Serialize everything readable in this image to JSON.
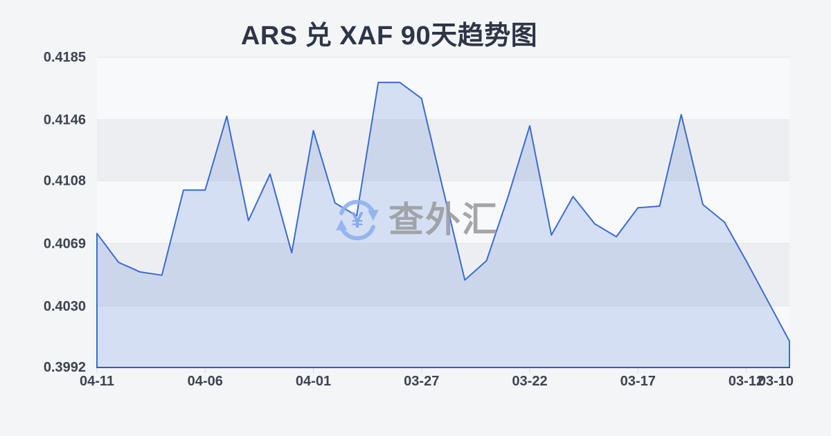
{
  "chart": {
    "title": "ARS 兑 XAF 90天趋势图",
    "watermark": {
      "text": "查外汇",
      "icon": "currency-exchange-icon",
      "currency_symbol": "¥"
    }
  },
  "chart_data": {
    "type": "area",
    "title": "ARS 兑 XAF 90天趋势图",
    "x": [
      "04-11",
      "04-10",
      "04-09",
      "04-08",
      "04-07",
      "04-06",
      "04-05",
      "04-04",
      "04-03",
      "04-02",
      "04-01",
      "03-31",
      "03-30",
      "03-29",
      "03-28",
      "03-27",
      "03-26",
      "03-25",
      "03-24",
      "03-23",
      "03-22",
      "03-21",
      "03-20",
      "03-19",
      "03-18",
      "03-17",
      "03-16",
      "03-15",
      "03-14",
      "03-13",
      "03-12",
      "03-11",
      "03-10"
    ],
    "values": [
      0.4075,
      0.4057,
      0.4051,
      0.4049,
      0.4102,
      0.4102,
      0.4148,
      0.4083,
      0.4112,
      0.4063,
      0.4139,
      0.4094,
      0.4086,
      0.4169,
      0.4169,
      0.4159,
      0.4102,
      0.4046,
      0.4058,
      0.4098,
      0.4142,
      0.4074,
      0.4098,
      0.4081,
      0.4073,
      0.4091,
      0.4092,
      0.4149,
      0.4093,
      0.4082,
      0.4058,
      0.4033,
      0.4008
    ],
    "x_tick_labels": [
      "04-11",
      "04-06",
      "04-01",
      "03-27",
      "03-22",
      "03-17",
      "03-12",
      "03-10"
    ],
    "x_tick_indices": [
      0,
      5,
      10,
      15,
      20,
      25,
      30,
      32
    ],
    "y_tick_labels": [
      "0.4185",
      "0.4146",
      "0.4108",
      "0.4069",
      "0.4030",
      "0.3992"
    ],
    "ylim": [
      0.3992,
      0.4185
    ],
    "xlabel": "",
    "ylabel": "",
    "grid": true,
    "legend": false,
    "colors": {
      "line": "#3a6bd0",
      "fill": "rgba(58,107,208,0.18)",
      "axis_line": "#3e5c9c",
      "gridline": "#e2e4e9",
      "tick": "#d6d9de",
      "label": "#3d4350",
      "title": "#2e3547",
      "band_light": "rgba(255,255,255,0.40)",
      "band_dark": "rgba(205,209,218,0.18)",
      "background": "#f4f5f7",
      "watermark_text": "#9b9ea2",
      "watermark_blue": "#8fb1ef"
    }
  }
}
